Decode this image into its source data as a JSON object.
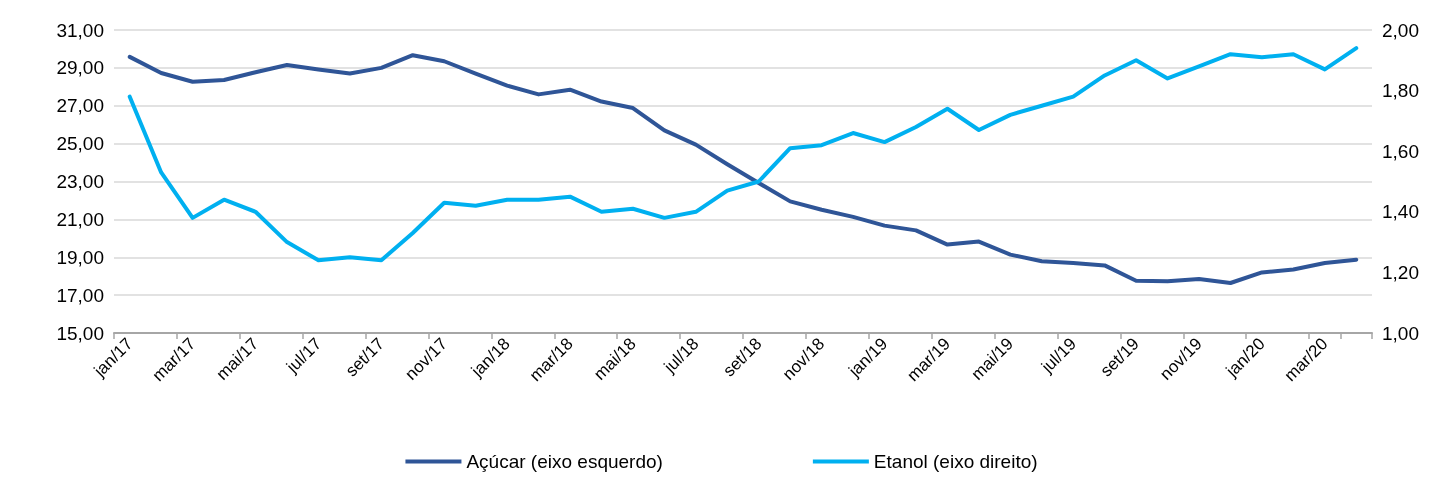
{
  "chart_data": {
    "type": "line",
    "categories": [
      "jan/17",
      null,
      "mar/17",
      null,
      "mai/17",
      null,
      "jul/17",
      null,
      "set/17",
      null,
      "nov/17",
      null,
      "jan/18",
      null,
      "mar/18",
      null,
      "mai/18",
      null,
      "jul/18",
      null,
      "set/18",
      null,
      "nov/18",
      null,
      "jan/19",
      null,
      "mar/19",
      null,
      "mai/19",
      null,
      "jul/19",
      null,
      "set/19",
      null,
      "nov/19",
      null,
      "jan/20",
      null,
      "mar/20",
      null
    ],
    "series": [
      {
        "name": "Açúcar (eixo esquerdo)",
        "color": "#2f5597",
        "values": [
          29.58,
          28.73,
          28.27,
          28.36,
          28.77,
          29.15,
          28.91,
          28.7,
          29.0,
          29.67,
          29.35,
          28.7,
          28.06,
          27.6,
          27.85,
          27.22,
          26.88,
          25.7,
          24.95,
          23.91,
          22.92,
          21.95,
          21.51,
          21.13,
          20.67,
          20.42,
          19.67,
          19.83,
          19.14,
          18.79,
          18.7,
          18.57,
          17.76,
          17.73,
          17.85,
          17.64,
          18.2,
          18.35,
          18.7,
          18.87
        ]
      },
      {
        "name": "Etanol (eixo direito)",
        "color": "#00b0f0",
        "axis": "y2",
        "values": [
          1.78,
          1.53,
          1.38,
          1.44,
          1.4,
          1.3,
          1.24,
          1.25,
          1.24,
          1.33,
          1.43,
          1.42,
          1.44,
          1.44,
          1.45,
          1.4,
          1.41,
          1.38,
          1.4,
          1.47,
          1.5,
          1.61,
          1.62,
          1.66,
          1.63,
          1.68,
          1.74,
          1.67,
          1.72,
          1.75,
          1.78,
          1.85,
          1.9,
          1.84,
          1.88,
          1.92,
          1.91,
          1.92,
          1.87,
          1.94
        ]
      }
    ],
    "ylim": [
      15,
      31
    ],
    "yticks": [
      {
        "value": 15,
        "label": "15,00"
      },
      {
        "value": 17,
        "label": "17,00"
      },
      {
        "value": 19,
        "label": "19,00"
      },
      {
        "value": 21,
        "label": "21,00"
      },
      {
        "value": 23,
        "label": "23,00"
      },
      {
        "value": 25,
        "label": "25,00"
      },
      {
        "value": 27,
        "label": "27,00"
      },
      {
        "value": 29,
        "label": "29,00"
      },
      {
        "value": 31,
        "label": "31,00"
      }
    ],
    "y2lim": [
      1,
      2
    ],
    "y2ticks": [
      {
        "value": 1,
        "label": "1,00"
      },
      {
        "value": 1.2,
        "label": "1,20"
      },
      {
        "value": 1.4,
        "label": "1,40"
      },
      {
        "value": 1.6,
        "label": "1,60"
      },
      {
        "value": 1.8,
        "label": "1,80"
      },
      {
        "value": 2,
        "label": "2,00"
      }
    ],
    "grid": "y",
    "legend": "bottom",
    "marker": "none",
    "line_style": "solid"
  }
}
